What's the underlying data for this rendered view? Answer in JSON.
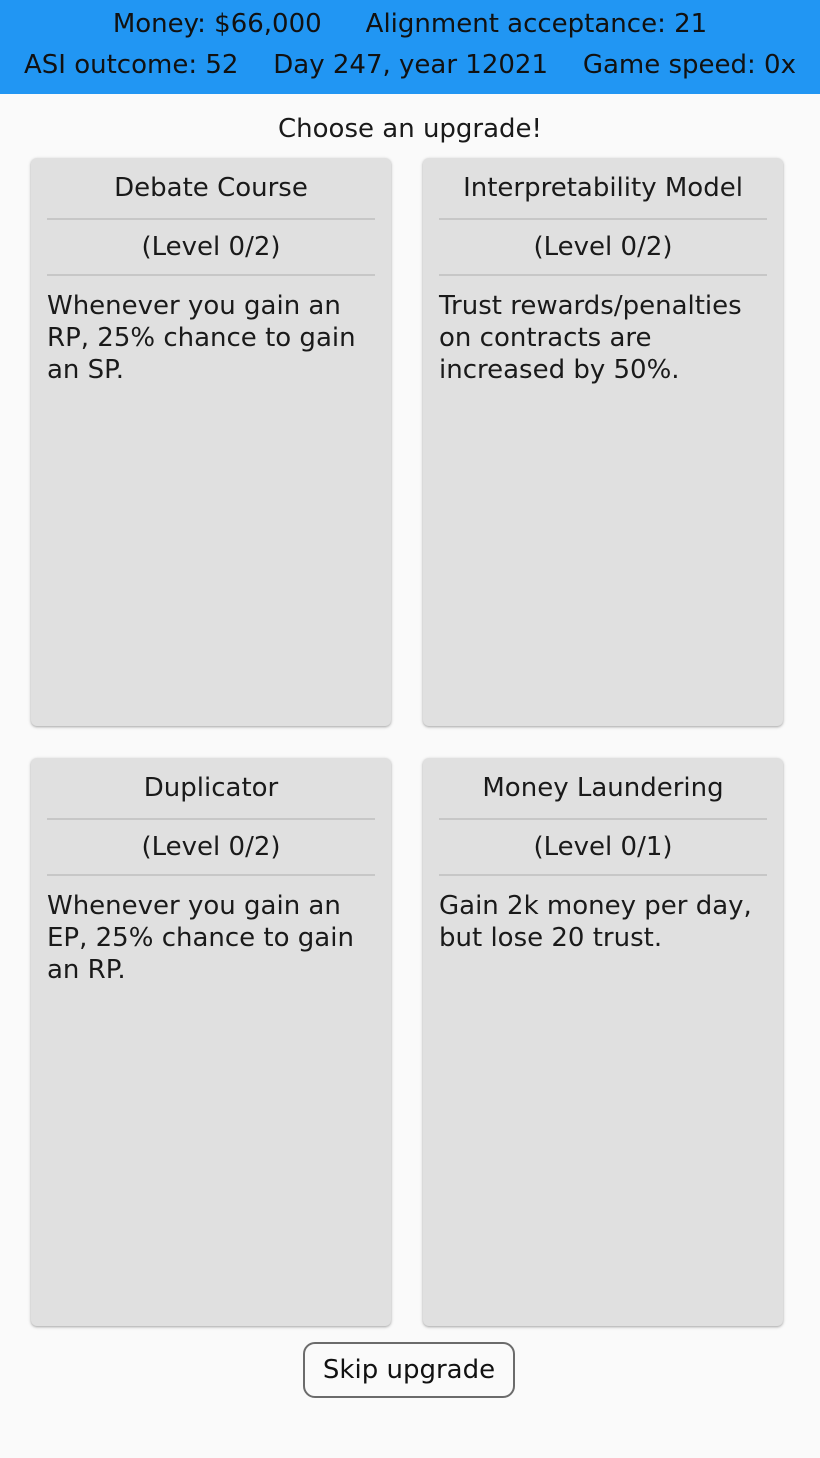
{
  "status": {
    "money": "Money: $66,000",
    "alignment_acceptance": "Alignment acceptance: 21",
    "asi_outcome": "ASI outcome: 52",
    "date": "Day 247, year 12021",
    "game_speed": "Game speed: 0x",
    "bar_color": "#2196f3"
  },
  "prompt": "Choose an upgrade!",
  "upgrades": [
    {
      "name": "Debate Course",
      "level": "(Level 0/2)",
      "description": "Whenever you gain an RP, 25% chance to gain an SP."
    },
    {
      "name": "Interpretability Model",
      "level": "(Level 0/2)",
      "description": "Trust rewards/penalties on contracts are increased by 50%."
    },
    {
      "name": "Duplicator",
      "level": "(Level 0/2)",
      "description": "Whenever you gain an EP, 25% chance to gain an RP."
    },
    {
      "name": "Money Laundering",
      "level": "(Level 0/1)",
      "description": "Gain 2k money per day, but lose 20 trust."
    }
  ],
  "skip_label": "Skip upgrade"
}
